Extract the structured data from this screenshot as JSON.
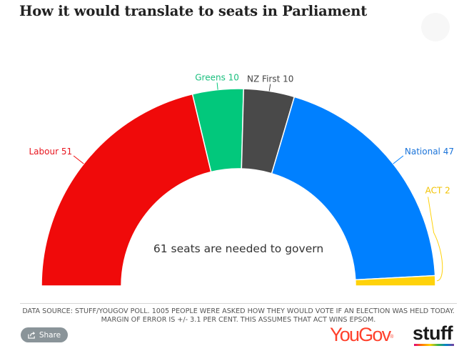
{
  "title": "How it would translate to seats in Parliament",
  "source_text": "DATA SOURCE: STUFF/YOUGOV POLL. 1005 PEOPLE WERE ASKED HOW THEY WOULD VOTE IF AN ELECTION WAS HELD TODAY. MARGIN OF ERROR IS +/- 3.1 PER CENT. THIS ASSUMES THAT ACT WINS EPSOM.",
  "share_label": "Share",
  "logos": {
    "yougov": "YouGov",
    "stuff": "stuff"
  },
  "icons": {
    "share": "share-icon"
  },
  "chart_data": {
    "type": "parliament-half-donut",
    "title": "How it would translate to seats in Parliament",
    "center_label": "61 seats are needed to govern",
    "series": [
      {
        "name": "Labour",
        "value": 51,
        "label": "Labour 51",
        "color": "#f00a0a",
        "label_color": "#e8161f"
      },
      {
        "name": "Greens",
        "value": 10,
        "label": "Greens 10",
        "color": "#02c87c",
        "label_color": "#1abf7e"
      },
      {
        "name": "NZ First",
        "value": 10,
        "label": "NZ First 10",
        "color": "#494949",
        "label_color": "#444444"
      },
      {
        "name": "National",
        "value": 47,
        "label": "National 47",
        "color": "#0080ff",
        "label_color": "#1a73d9"
      },
      {
        "name": "ACT",
        "value": 2,
        "label": "ACT 2",
        "color": "#ffd20a",
        "label_color": "#f2c200"
      }
    ]
  }
}
